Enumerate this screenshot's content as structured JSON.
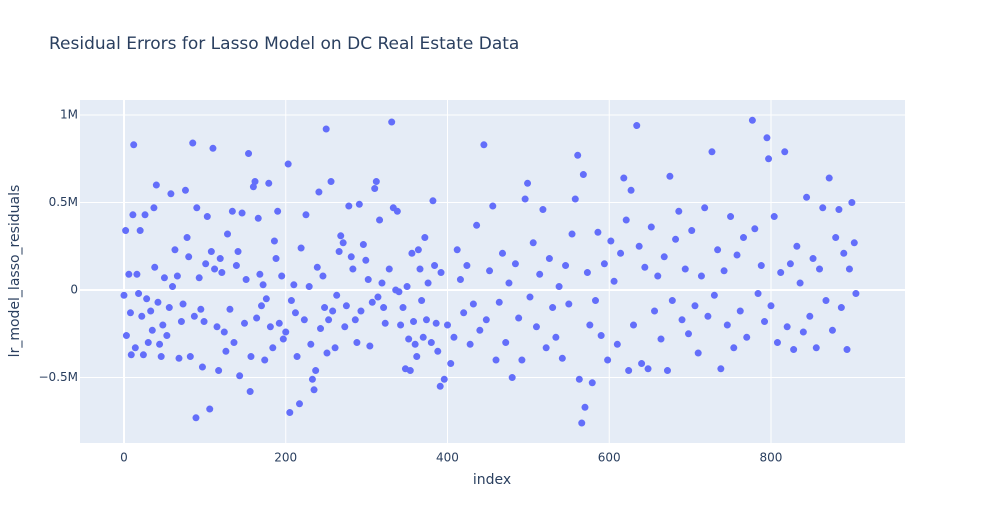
{
  "chart_data": {
    "type": "scatter",
    "title": "Residual Errors for Lasso Model on DC Real Estate Data",
    "x_label": "index",
    "y_label": "lr_model_lasso_residuals",
    "color": "#636efa",
    "grid": true,
    "xlim": [
      -54.4,
      965.7
    ],
    "ylim": [
      -874000,
      1086000
    ],
    "xticks": [
      0,
      200,
      400,
      600,
      800
    ],
    "yticks": [
      {
        "value": -500000,
        "label": "−0.5M"
      },
      0,
      {
        "value": 500000,
        "label": "0.5M"
      },
      {
        "value": 1000000,
        "label": "1M"
      }
    ],
    "x": [
      0,
      2,
      3,
      6,
      8,
      9,
      11,
      12,
      14,
      16,
      18,
      20,
      22,
      24,
      26,
      28,
      30,
      33,
      35,
      37,
      38,
      40,
      42,
      44,
      46,
      48,
      50,
      53,
      56,
      58,
      60,
      63,
      66,
      68,
      71,
      73,
      76,
      78,
      80,
      82,
      85,
      87,
      89,
      90,
      93,
      95,
      97,
      99,
      101,
      103,
      106,
      108,
      110,
      112,
      115,
      117,
      119,
      121,
      124,
      126,
      128,
      131,
      134,
      136,
      139,
      141,
      143,
      146,
      149,
      151,
      154,
      156,
      157,
      160,
      162,
      164,
      166,
      168,
      170,
      172,
      174,
      176,
      179,
      181,
      184,
      186,
      188,
      190,
      192,
      195,
      197,
      200,
      203,
      205,
      207,
      210,
      212,
      214,
      217,
      219,
      223,
      225,
      229,
      231,
      233,
      235,
      237,
      239,
      241,
      243,
      246,
      248,
      250,
      251,
      253,
      256,
      258,
      261,
      263,
      266,
      268,
      271,
      273,
      275,
      278,
      281,
      283,
      286,
      288,
      291,
      293,
      296,
      299,
      302,
      304,
      307,
      310,
      312,
      314,
      316,
      319,
      321,
      323,
      328,
      331,
      333,
      336,
      338,
      340,
      342,
      345,
      348,
      350,
      352,
      354,
      356,
      358,
      360,
      362,
      364,
      366,
      368,
      370,
      372,
      374,
      376,
      380,
      382,
      384,
      386,
      388,
      391,
      392,
      396,
      400,
      404,
      408,
      412,
      416,
      420,
      424,
      428,
      432,
      436,
      440,
      445,
      448,
      452,
      456,
      460,
      464,
      468,
      472,
      476,
      480,
      484,
      488,
      492,
      496,
      499,
      502,
      506,
      510,
      514,
      518,
      522,
      526,
      530,
      534,
      538,
      542,
      546,
      550,
      554,
      558,
      561,
      563,
      566,
      568,
      570,
      573,
      576,
      579,
      583,
      586,
      590,
      594,
      598,
      602,
      606,
      610,
      614,
      618,
      621,
      624,
      627,
      630,
      634,
      637,
      640,
      644,
      648,
      652,
      656,
      660,
      664,
      668,
      672,
      675,
      678,
      682,
      686,
      690,
      694,
      698,
      702,
      706,
      710,
      714,
      718,
      722,
      727,
      730,
      734,
      738,
      742,
      746,
      750,
      754,
      758,
      762,
      766,
      770,
      777,
      780,
      784,
      788,
      792,
      795,
      797,
      800,
      804,
      808,
      812,
      817,
      820,
      824,
      828,
      832,
      836,
      840,
      844,
      848,
      852,
      856,
      860,
      864,
      868,
      872,
      876,
      880,
      884,
      887,
      890,
      894,
      897,
      900,
      903,
      905
    ],
    "y": [
      -30000,
      340000,
      -260000,
      90000,
      -130000,
      -370000,
      430000,
      830000,
      -330000,
      90000,
      -20000,
      340000,
      -150000,
      -370000,
      430000,
      -50000,
      -300000,
      -120000,
      -230000,
      470000,
      130000,
      600000,
      -70000,
      -310000,
      -380000,
      -200000,
      70000,
      -260000,
      -100000,
      550000,
      20000,
      230000,
      80000,
      -390000,
      -180000,
      -80000,
      570000,
      300000,
      190000,
      -380000,
      840000,
      -150000,
      -730000,
      470000,
      70000,
      -110000,
      -440000,
      -180000,
      150000,
      420000,
      -680000,
      220000,
      810000,
      120000,
      -210000,
      -460000,
      180000,
      100000,
      -240000,
      -350000,
      320000,
      -110000,
      450000,
      -300000,
      140000,
      220000,
      -490000,
      440000,
      -190000,
      60000,
      780000,
      -580000,
      -380000,
      590000,
      620000,
      -160000,
      410000,
      90000,
      -90000,
      30000,
      -400000,
      -50000,
      610000,
      -210000,
      -330000,
      280000,
      180000,
      450000,
      -190000,
      80000,
      -280000,
      -240000,
      720000,
      -700000,
      -60000,
      30000,
      -130000,
      -380000,
      -650000,
      240000,
      -170000,
      430000,
      20000,
      -310000,
      -510000,
      -570000,
      -460000,
      130000,
      560000,
      -220000,
      80000,
      -100000,
      920000,
      -360000,
      -170000,
      620000,
      -120000,
      -330000,
      -30000,
      220000,
      310000,
      270000,
      -210000,
      -90000,
      480000,
      190000,
      120000,
      -170000,
      -300000,
      490000,
      -120000,
      260000,
      170000,
      60000,
      -320000,
      -70000,
      580000,
      620000,
      -40000,
      400000,
      40000,
      -100000,
      -190000,
      120000,
      960000,
      470000,
      0,
      450000,
      -10000,
      -200000,
      -100000,
      -450000,
      20000,
      -280000,
      -460000,
      210000,
      -180000,
      -310000,
      -380000,
      230000,
      120000,
      -60000,
      -270000,
      300000,
      -170000,
      40000,
      -300000,
      510000,
      140000,
      -190000,
      -350000,
      -550000,
      100000,
      -510000,
      -200000,
      -420000,
      -270000,
      230000,
      60000,
      -130000,
      140000,
      -310000,
      -80000,
      370000,
      -230000,
      830000,
      -170000,
      110000,
      480000,
      -400000,
      -70000,
      210000,
      -300000,
      40000,
      -500000,
      150000,
      -160000,
      -400000,
      520000,
      610000,
      -40000,
      270000,
      -210000,
      90000,
      460000,
      -330000,
      180000,
      -100000,
      -270000,
      20000,
      -390000,
      140000,
      -80000,
      320000,
      520000,
      770000,
      -510000,
      -760000,
      660000,
      -670000,
      100000,
      -200000,
      -530000,
      -60000,
      330000,
      -260000,
      150000,
      -400000,
      280000,
      50000,
      -310000,
      210000,
      640000,
      400000,
      -460000,
      570000,
      -200000,
      940000,
      250000,
      -420000,
      130000,
      -450000,
      360000,
      -120000,
      80000,
      -280000,
      190000,
      -460000,
      650000,
      -60000,
      290000,
      450000,
      -170000,
      120000,
      -250000,
      340000,
      -90000,
      -360000,
      80000,
      470000,
      -150000,
      790000,
      -30000,
      230000,
      -450000,
      110000,
      -200000,
      420000,
      -330000,
      200000,
      -120000,
      300000,
      -270000,
      970000,
      350000,
      -20000,
      140000,
      -180000,
      870000,
      750000,
      -90000,
      420000,
      -300000,
      100000,
      790000,
      -210000,
      150000,
      -340000,
      250000,
      40000,
      -240000,
      530000,
      -150000,
      180000,
      -330000,
      120000,
      470000,
      -60000,
      640000,
      -230000,
      300000,
      460000,
      -100000,
      210000,
      -340000,
      120000,
      500000,
      270000,
      -20000
    ]
  }
}
